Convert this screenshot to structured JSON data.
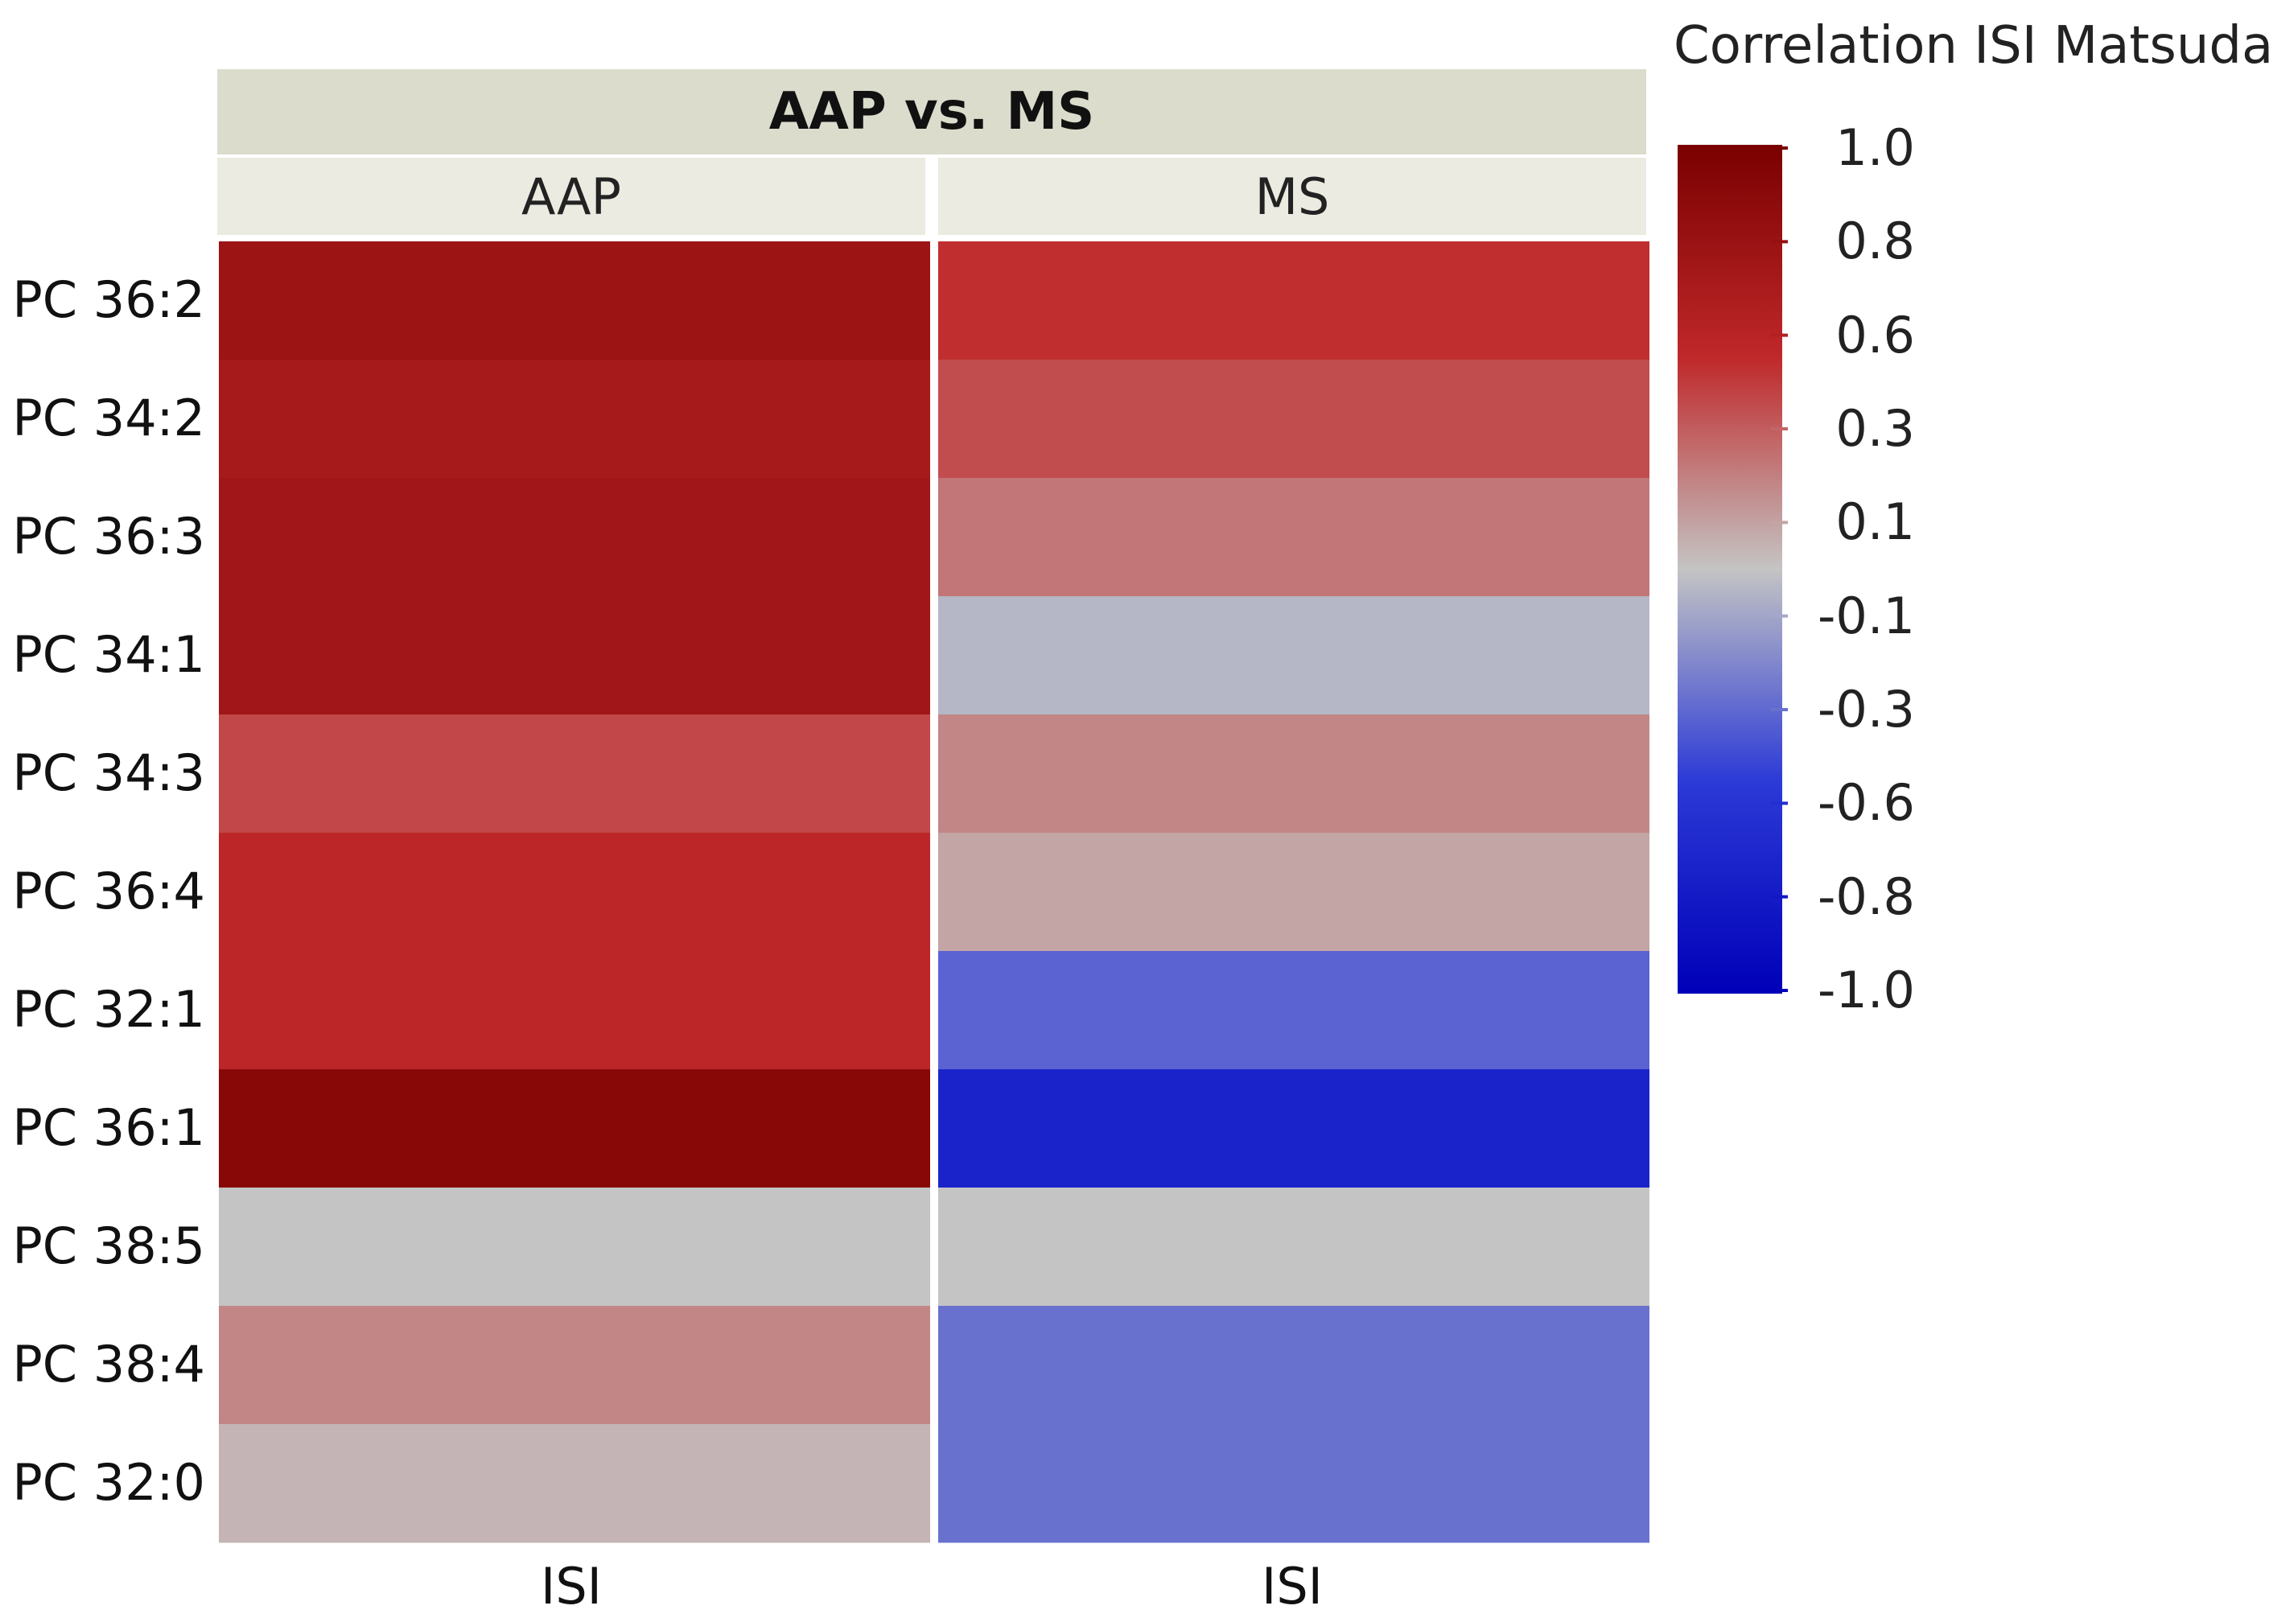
{
  "chart_data": {
    "type": "heatmap",
    "title": "AAP vs. MS",
    "columns": [
      "AAP",
      "MS"
    ],
    "xlabels": [
      "ISI",
      "ISI"
    ],
    "rows": [
      "PC 36:2",
      "PC 34:2",
      "PC 36:3",
      "PC 34:1",
      "PC 34:3",
      "PC 36:4",
      "PC 32:1",
      "PC 36:1",
      "PC 38:5",
      "PC 38:4",
      "PC 32:0"
    ],
    "values": {
      "AAP": [
        0.75,
        0.68,
        0.72,
        0.72,
        0.4,
        0.52,
        0.52,
        0.9,
        0.0,
        0.2,
        0.05
      ],
      "MS": [
        0.48,
        0.38,
        0.25,
        -0.05,
        0.2,
        0.1,
        -0.35,
        -0.7,
        0.0,
        -0.3,
        -0.3
      ]
    },
    "legend": {
      "title": "Correlation ISI Matsuda",
      "range": [
        -1.0,
        1.0
      ],
      "ticks": [
        "1.0",
        "0.8",
        "0.6",
        "0.3",
        "0.1",
        "-0.1",
        "-0.3",
        "-0.6",
        "-0.8",
        "-1.0"
      ],
      "colors": {
        "high": "#7a0000",
        "upper": "#c0282a",
        "mid": "#c4c4c4",
        "lower": "#2c3ad6",
        "low": "#0000b8"
      }
    }
  }
}
